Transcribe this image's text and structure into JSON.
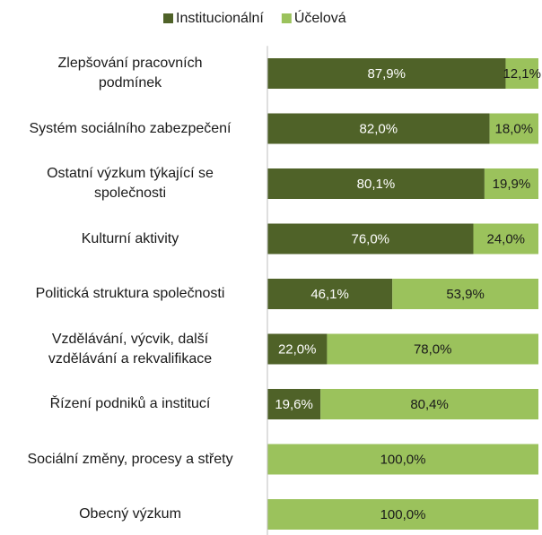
{
  "chart_data": {
    "type": "stacked_barh",
    "categories": [
      "Zlepšování pracovních\npodmínek",
      "Systém sociálního zabezpečení",
      "Ostatní výzkum týkající se\nspolečnosti",
      "Kulturní aktivity",
      "Politická struktura společnosti",
      "Vzdělávání, výcvik, další\nvzdělávání a rekvalifikace",
      "Řízení podniků a institucí",
      "Sociální změny, procesy a střety",
      "Obecný výzkum"
    ],
    "series": [
      {
        "name": "Institucionální",
        "color": "#4f6228",
        "label_color": "#ffffff",
        "values": [
          87.9,
          82.0,
          80.1,
          76.0,
          46.1,
          22.0,
          19.6,
          0,
          0
        ],
        "value_labels": [
          "87,9%",
          "82,0%",
          "80,1%",
          "76,0%",
          "46,1%",
          "22,0%",
          "19,6%",
          null,
          null
        ]
      },
      {
        "name": "Účelová",
        "color": "#9bc25c",
        "label_color": "#1a1a1a",
        "values": [
          12.1,
          18.0,
          19.9,
          24.0,
          53.9,
          78.0,
          80.4,
          100.0,
          100.0
        ],
        "value_labels": [
          "12,1%",
          "18,0%",
          "19,9%",
          "24,0%",
          "53,9%",
          "78,0%",
          "80,4%",
          "100,0%",
          "100,0%"
        ]
      }
    ],
    "xlim": [
      0,
      100
    ],
    "legend": "top"
  }
}
